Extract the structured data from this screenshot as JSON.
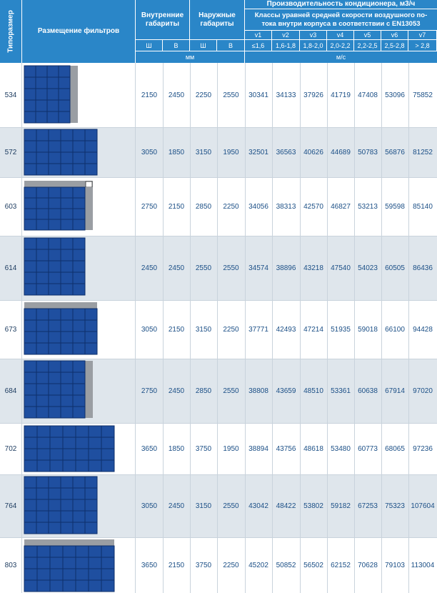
{
  "header": {
    "typesize": "Типоразмер",
    "filters": "Размещение фильтров",
    "inner": "Внутренние габариты",
    "outer": "Наружные габариты",
    "capacity_title": "Производительность кондиционера, м3/ч",
    "classes_text": "Классы уравней средней скорости воздушного по-тока внутри корпуса в соответствии с EN13053",
    "w": "Ш",
    "h": "В",
    "unit_mm": "мм",
    "unit_ms": "м/с",
    "classes": [
      "v1",
      "v2",
      "v3",
      "v4",
      "v5",
      "v6",
      "v7"
    ],
    "ranges": [
      "≤1,6",
      "1,6-1,8",
      "1,8-2,0",
      "2,0-2,2",
      "2,2-2,5",
      "2,5-2,8",
      "> 2,8"
    ]
  },
  "rows": [
    {
      "size": "534",
      "inner_w": "2150",
      "inner_h": "2450",
      "outer_w": "2250",
      "outer_h": "2550",
      "v": [
        "30341",
        "34133",
        "37926",
        "41719",
        "47408",
        "53096",
        "75852"
      ],
      "filter_layout": "4x5 grid with side gray strip"
    },
    {
      "size": "572",
      "inner_w": "3050",
      "inner_h": "1850",
      "outer_w": "3150",
      "outer_h": "1950",
      "v": [
        "32501",
        "36563",
        "40626",
        "44689",
        "50783",
        "56876",
        "81252"
      ],
      "filter_layout": "6x4 grid"
    },
    {
      "size": "603",
      "inner_w": "2750",
      "inner_h": "2150",
      "outer_w": "2850",
      "outer_h": "2250",
      "v": [
        "34056",
        "38313",
        "42570",
        "46827",
        "53213",
        "59598",
        "85140"
      ],
      "filter_layout": "5x4 grid with top and side gray strips"
    },
    {
      "size": "614",
      "inner_w": "2450",
      "inner_h": "2450",
      "outer_w": "2550",
      "outer_h": "2550",
      "v": [
        "34574",
        "38896",
        "43218",
        "47540",
        "54023",
        "60505",
        "86436"
      ],
      "filter_layout": "5x5 grid"
    },
    {
      "size": "673",
      "inner_w": "3050",
      "inner_h": "2150",
      "outer_w": "3150",
      "outer_h": "2250",
      "v": [
        "37771",
        "42493",
        "47214",
        "51935",
        "59018",
        "66100",
        "94428"
      ],
      "filter_layout": "6x4 grid with top gray strip"
    },
    {
      "size": "684",
      "inner_w": "2750",
      "inner_h": "2450",
      "outer_w": "2850",
      "outer_h": "2550",
      "v": [
        "38808",
        "43659",
        "48510",
        "53361",
        "60638",
        "67914",
        "97020"
      ],
      "filter_layout": "5x5 grid with side gray strip"
    },
    {
      "size": "702",
      "inner_w": "3650",
      "inner_h": "1850",
      "outer_w": "3750",
      "outer_h": "1950",
      "v": [
        "38894",
        "43756",
        "48618",
        "53480",
        "60773",
        "68065",
        "97236"
      ],
      "filter_layout": "7x4 grid"
    },
    {
      "size": "764",
      "inner_w": "3050",
      "inner_h": "2450",
      "outer_w": "3150",
      "outer_h": "2550",
      "v": [
        "43042",
        "48422",
        "53802",
        "59182",
        "67253",
        "75323",
        "107604"
      ],
      "filter_layout": "6x5 grid"
    },
    {
      "size": "803",
      "inner_w": "3650",
      "inner_h": "2150",
      "outer_w": "3750",
      "outer_h": "2250",
      "v": [
        "45202",
        "50852",
        "56502",
        "62152",
        "70628",
        "79103",
        "113004"
      ],
      "filter_layout": "7x4 grid with top gray strip"
    }
  ],
  "colors": {
    "header": "#2a86c8",
    "filter": "#1f4fa0",
    "strip": "#9a9ea3",
    "row_alt": "#dfe6ec"
  }
}
